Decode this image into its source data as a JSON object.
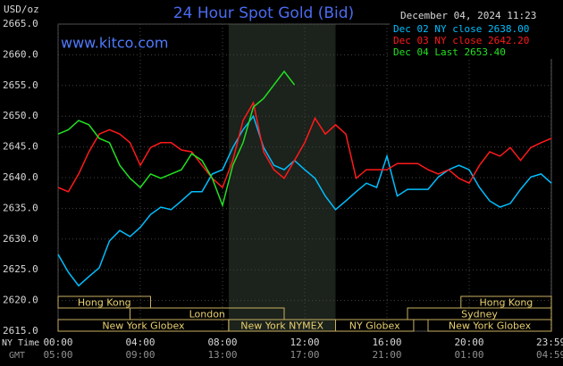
{
  "chart_data": {
    "type": "line",
    "title": "24 Hour Spot Gold (Bid)",
    "unit_label": "USD/oz",
    "timestamp": "December 04, 2024 11:23",
    "watermark": "www.kitco.com",
    "x_label": "NY Time",
    "x2_label": "GMT",
    "x": [
      0,
      0.5,
      1,
      1.5,
      2,
      2.5,
      3,
      3.5,
      4,
      4.5,
      5,
      5.5,
      6,
      6.5,
      7,
      7.5,
      8,
      8.5,
      9,
      9.5,
      10,
      10.5,
      11,
      11.5,
      12,
      12.5,
      13,
      13.5,
      14,
      14.5,
      15,
      15.5,
      16,
      16.5,
      17,
      17.5,
      18,
      18.5,
      19,
      19.5,
      20,
      20.5,
      21,
      21.5,
      22,
      22.5,
      23,
      23.5,
      24
    ],
    "series": [
      {
        "name": "Dec 02 NY close 2638.00",
        "color": "#00bfff",
        "values": [
          2627.5,
          2624.6,
          2622.4,
          2623.9,
          2625.3,
          2629.7,
          2631.4,
          2630.4,
          2631.9,
          2634.0,
          2635.2,
          2634.8,
          2636.2,
          2637.7,
          2637.7,
          2640.6,
          2641.3,
          2644.9,
          2647.8,
          2650.0,
          2644.9,
          2642.0,
          2641.3,
          2642.8,
          2641.3,
          2639.9,
          2637.0,
          2634.8,
          2636.2,
          2637.7,
          2639.1,
          2638.4,
          2643.5,
          2637.0,
          2638.1,
          2638.1,
          2638.1,
          2640.1,
          2641.3,
          2642.0,
          2641.3,
          2638.4,
          2636.2,
          2635.2,
          2635.8,
          2638.1,
          2640.1,
          2640.6,
          2639.1
        ]
      },
      {
        "name": "Dec 03 NY close 2642.20",
        "color": "#ff1a1a",
        "values": [
          2638.4,
          2637.7,
          2640.6,
          2644.2,
          2647.1,
          2647.8,
          2647.1,
          2645.7,
          2642.0,
          2644.9,
          2645.7,
          2645.7,
          2644.5,
          2644.2,
          2642.0,
          2639.9,
          2638.4,
          2642.8,
          2649.3,
          2652.2,
          2644.2,
          2641.3,
          2639.9,
          2642.8,
          2645.7,
          2649.7,
          2647.1,
          2648.6,
          2647.1,
          2639.9,
          2641.3,
          2641.3,
          2641.3,
          2642.3,
          2642.3,
          2642.3,
          2641.3,
          2640.6,
          2641.3,
          2639.9,
          2639.1,
          2642.0,
          2644.2,
          2643.5,
          2644.9,
          2642.8,
          2644.9,
          2645.7,
          2646.4
        ]
      },
      {
        "name": "Dec 04 Last 2653.40",
        "color": "#22e022",
        "values": [
          2647.1,
          2647.8,
          2649.3,
          2648.6,
          2646.4,
          2645.7,
          2642.0,
          2639.9,
          2638.4,
          2640.6,
          2639.9,
          2640.6,
          2641.3,
          2643.9,
          2642.8,
          2639.9,
          2635.5,
          2642.0,
          2645.7,
          2651.5,
          2652.9,
          2655.1,
          2657.3,
          2655.1,
          null,
          null,
          null,
          null,
          null,
          null,
          null,
          null,
          null,
          null,
          null,
          null,
          null,
          null,
          null,
          null,
          null,
          null,
          null,
          null,
          null,
          null,
          null,
          null,
          null
        ]
      }
    ],
    "xlim": [
      0,
      24
    ],
    "xticks": [
      {
        "value": 0,
        "label": "00:00"
      },
      {
        "value": 4,
        "label": "04:00"
      },
      {
        "value": 8,
        "label": "08:00"
      },
      {
        "value": 12,
        "label": "12:00"
      },
      {
        "value": 16,
        "label": "16:00"
      },
      {
        "value": 20,
        "label": "20:00"
      },
      {
        "value": 23.98,
        "label": "23:59"
      }
    ],
    "x2ticks": [
      "05:00",
      "09:00",
      "13:00",
      "17:00",
      "21:00",
      "01:00",
      "04:59"
    ],
    "ylim": [
      2615,
      2665
    ],
    "yticks": [
      {
        "value": 2665,
        "label": "2665.0"
      },
      {
        "value": 2660,
        "label": "2660.0"
      },
      {
        "value": 2655,
        "label": "2655.0"
      },
      {
        "value": 2650,
        "label": "2650.0"
      },
      {
        "value": 2645,
        "label": "2645.0"
      },
      {
        "value": 2640,
        "label": "2640.0"
      },
      {
        "value": 2635,
        "label": "2635.0"
      },
      {
        "value": 2630,
        "label": "2630.0"
      },
      {
        "value": 2625,
        "label": "2625.0"
      },
      {
        "value": 2620,
        "label": "2620.0"
      },
      {
        "value": 2615,
        "label": "2615.0"
      }
    ],
    "grid": true,
    "session_rows": [
      [
        {
          "label": "Hong Kong",
          "start": 0,
          "end": 4.5
        },
        {
          "label": "Hong Kong",
          "start": 19.6,
          "end": 24
        }
      ],
      [
        {
          "label": "London",
          "start": 3.5,
          "end": 11
        },
        {
          "label": "Sydney",
          "start": 17,
          "end": 24
        }
      ],
      [
        {
          "label": "New York Globex",
          "start": 0,
          "end": 8.3
        },
        {
          "label": "New York NYMEX",
          "start": 8.3,
          "end": 13.5
        },
        {
          "label": "NY Globex",
          "start": 13.5,
          "end": 17.3
        },
        {
          "label": "New York Globex",
          "start": 18,
          "end": 24
        }
      ]
    ]
  }
}
